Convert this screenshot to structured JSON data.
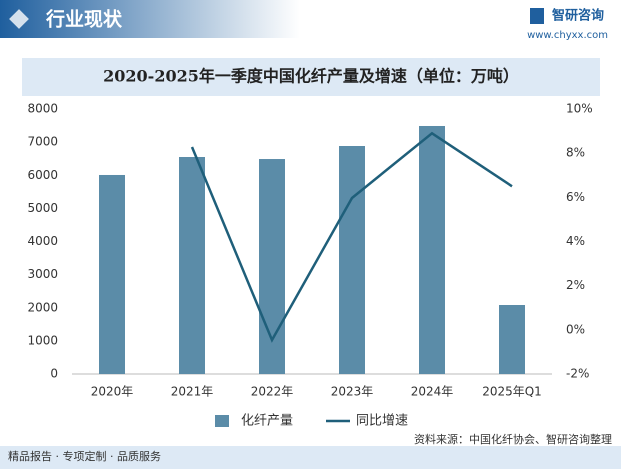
{
  "header": {
    "section": "行业现状",
    "brand": "智研咨询",
    "url": "www.chyxx.com"
  },
  "footer": {
    "slogan": "精品报告 · 专项定制 · 品质服务",
    "source": "资料来源：中国化纤协会、智研咨询整理"
  },
  "chart_data": {
    "type": "bar_line",
    "title": "2020-2025年一季度中国化纤产量及增速（单位：万吨）",
    "categories": [
      "2020年",
      "2021年",
      "2022年",
      "2023年",
      "2024年",
      "2025年Q1"
    ],
    "series": [
      {
        "name": "化纤产量",
        "type": "bar",
        "color": "#5b8ca8",
        "values": [
          6008,
          6551,
          6490,
          6883,
          7487,
          2083
        ]
      },
      {
        "name": "同比增速",
        "type": "line",
        "axis": "y2",
        "color": "#1f5f7a",
        "values": [
          null,
          8.28,
          -0.46,
          5.97,
          8.9,
          6.5
        ]
      }
    ],
    "ylim": [
      0,
      8000
    ],
    "yticks": [
      0,
      1000,
      2000,
      3000,
      4000,
      5000,
      6000,
      7000,
      8000
    ],
    "y2lim": [
      -2,
      10
    ],
    "y2ticks": [
      {
        "value": -2,
        "label": "-2%"
      },
      {
        "value": 0,
        "label": "0%"
      },
      {
        "value": 2,
        "label": "2%"
      },
      {
        "value": 4,
        "label": "4%"
      },
      {
        "value": 6,
        "label": "6%"
      },
      {
        "value": 8,
        "label": "8%"
      },
      {
        "value": 10,
        "label": "10%"
      }
    ],
    "grid": false,
    "legend": "bottom"
  }
}
